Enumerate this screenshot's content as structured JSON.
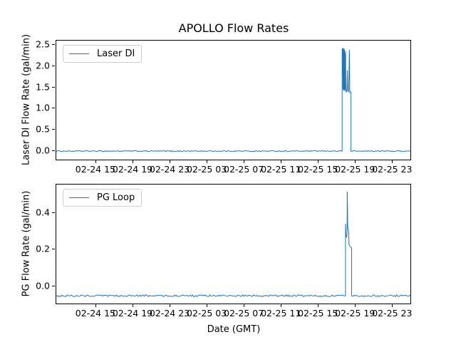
{
  "figure": {
    "title": "APOLLO Flow Rates",
    "xlabel": "Date (GMT)"
  },
  "chart_data": [
    {
      "type": "line",
      "title": "APOLLO Flow Rates",
      "ylabel": "Laser DI Flow Rate (gal/min)",
      "legend_label": "Laser DI",
      "line_color": "#1f77b4",
      "legend_position": "upper left",
      "grid": false,
      "x_unit": "hours since 02-24 00:00 GMT",
      "xlim": [
        10.7,
        48.9
      ],
      "ylim": [
        -0.2,
        2.6
      ],
      "x_ticks": [
        15,
        19,
        23,
        27,
        31,
        35,
        39,
        43,
        47
      ],
      "x_ticklabels": [
        "02-24 15",
        "02-24 19",
        "02-24 23",
        "02-25 03",
        "02-25 07",
        "02-25 11",
        "02-25 15",
        "02-25 19",
        "02-25 23"
      ],
      "y_ticks": [
        0.0,
        0.5,
        1.0,
        1.5,
        2.0,
        2.5
      ],
      "y_ticklabels": [
        "0.0",
        "0.5",
        "1.0",
        "1.5",
        "2.0",
        "2.5"
      ],
      "baseline": {
        "value": 0.0,
        "noise": 0.012
      },
      "event": {
        "start": 41.54,
        "end": 42.49,
        "peak": 2.42,
        "points": [
          [
            41.54,
            2.42
          ],
          [
            41.57,
            1.8
          ],
          [
            41.59,
            2.42
          ],
          [
            41.61,
            2.35
          ],
          [
            41.63,
            1.45
          ],
          [
            41.65,
            2.4
          ],
          [
            41.68,
            2.42
          ],
          [
            41.7,
            1.42
          ],
          [
            41.73,
            2.38
          ],
          [
            41.75,
            1.44
          ],
          [
            41.77,
            2.4
          ],
          [
            41.8,
            2.36
          ],
          [
            41.82,
            1.42
          ],
          [
            41.85,
            2.3
          ],
          [
            41.88,
            1.45
          ],
          [
            41.91,
            2.35
          ],
          [
            41.94,
            1.4
          ],
          [
            41.97,
            1.42
          ],
          [
            42.0,
            1.4
          ],
          [
            42.05,
            1.44
          ],
          [
            42.1,
            1.9
          ],
          [
            42.14,
            1.42
          ],
          [
            42.18,
            1.4
          ],
          [
            42.24,
            1.42
          ],
          [
            42.31,
            2.38
          ],
          [
            42.33,
            2.3
          ],
          [
            42.36,
            1.38
          ],
          [
            42.42,
            1.4
          ],
          [
            42.49,
            1.38
          ]
        ]
      }
    },
    {
      "type": "line",
      "title": "",
      "ylabel": "PG Flow Rate (gal/min)",
      "legend_label": "PG Loop",
      "line_color": "#1f77b4",
      "legend_position": "upper left",
      "grid": false,
      "x_unit": "hours since 02-24 00:00 GMT",
      "xlim": [
        10.7,
        48.9
      ],
      "ylim": [
        -0.092,
        0.553
      ],
      "x_ticks": [
        15,
        19,
        23,
        27,
        31,
        35,
        39,
        43,
        47
      ],
      "x_ticklabels": [
        "02-24 15",
        "02-24 19",
        "02-24 23",
        "02-25 03",
        "02-25 07",
        "02-25 11",
        "02-25 15",
        "02-25 19",
        "02-25 23"
      ],
      "y_ticks": [
        0.0,
        0.2,
        0.4
      ],
      "y_ticklabels": [
        "0.0",
        "0.2",
        "0.4"
      ],
      "baseline": {
        "value": -0.05,
        "noise": 0.005
      },
      "event": {
        "start": 41.9,
        "end": 42.56,
        "peak": 0.515,
        "points": [
          [
            41.9,
            0.34
          ],
          [
            41.93,
            0.3
          ],
          [
            41.96,
            0.27
          ],
          [
            41.99,
            0.275
          ],
          [
            42.02,
            0.265
          ],
          [
            42.05,
            0.275
          ],
          [
            42.07,
            0.29
          ],
          [
            42.09,
            0.515
          ],
          [
            42.12,
            0.42
          ],
          [
            42.14,
            0.33
          ],
          [
            42.18,
            0.305
          ],
          [
            42.24,
            0.3
          ],
          [
            42.28,
            0.225
          ],
          [
            42.35,
            0.22
          ],
          [
            42.45,
            0.215
          ],
          [
            42.56,
            0.21
          ]
        ]
      }
    }
  ]
}
